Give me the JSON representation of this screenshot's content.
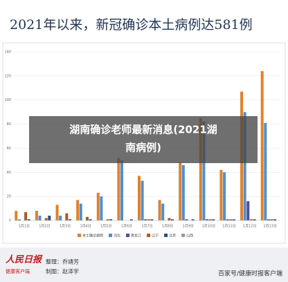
{
  "chart_data": {
    "type": "bar",
    "title": "2021年以来，新冠确诊本土病例达581例",
    "categories": [
      "1月1日",
      "1月2日",
      "1月3日",
      "1月4日",
      "1月5日",
      "1月6日",
      "1月7日",
      "1月8日",
      "1月9日",
      "1月10日",
      "1月11日",
      "1月12日",
      "1月13日"
    ],
    "series": [
      {
        "name": "本土确诊病例",
        "color": "#e0812c",
        "values": [
          8,
          8,
          13,
          17,
          23,
          52,
          37,
          17,
          48,
          85,
          42,
          107,
          124
        ]
      },
      {
        "name": "河北",
        "color": "#4f8fce",
        "values": [
          1,
          4,
          4,
          14,
          20,
          50,
          33,
          14,
          46,
          82,
          40,
          90,
          81
        ]
      },
      {
        "name": "黑龙江",
        "color": "#4b4f9e",
        "values": [
          0,
          0,
          0,
          0,
          0,
          0,
          1,
          0,
          1,
          1,
          1,
          16,
          1
        ]
      },
      {
        "name": "辽宁",
        "color": "#a85a2a",
        "values": [
          7,
          2,
          6,
          3,
          1,
          0,
          1,
          2,
          0,
          1,
          1,
          1,
          1
        ]
      },
      {
        "name": "北京",
        "color": "#2f4f7a",
        "values": [
          1,
          4,
          1,
          1,
          1,
          1,
          1,
          1,
          1,
          1,
          1,
          1,
          1
        ]
      },
      {
        "name": "山西",
        "color": "#9a9a9a",
        "values": [
          0,
          0,
          0,
          0,
          0,
          0,
          0,
          0,
          0,
          0,
          0,
          0,
          0
        ]
      }
    ],
    "ylim": [
      0,
      140
    ],
    "yticks": [
      0,
      20,
      40,
      60,
      80,
      100,
      120,
      140
    ],
    "grid": true
  },
  "overlay": {
    "line1": "湖南确诊老师最新消息(2021湖",
    "line2": "南病例)"
  },
  "footer": {
    "logo": "人民日报",
    "logo_sub": "健康客户端",
    "editor": "整理：乔靖芳",
    "designer": "制图：赵泽宇",
    "source": "百家号/健康时报客户端"
  }
}
